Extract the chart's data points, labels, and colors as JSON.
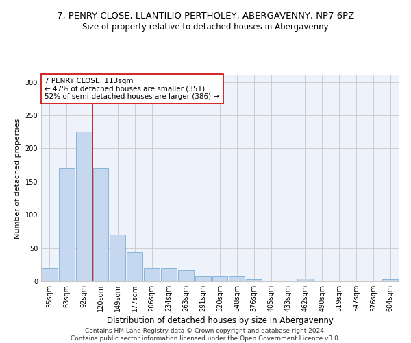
{
  "title1": "7, PENRY CLOSE, LLANTILIO PERTHOLEY, ABERGAVENNY, NP7 6PZ",
  "title2": "Size of property relative to detached houses in Abergavenny",
  "xlabel": "Distribution of detached houses by size in Abergavenny",
  "ylabel": "Number of detached properties",
  "categories": [
    "35sqm",
    "63sqm",
    "92sqm",
    "120sqm",
    "149sqm",
    "177sqm",
    "206sqm",
    "234sqm",
    "263sqm",
    "291sqm",
    "320sqm",
    "348sqm",
    "376sqm",
    "405sqm",
    "433sqm",
    "462sqm",
    "490sqm",
    "519sqm",
    "547sqm",
    "576sqm",
    "604sqm"
  ],
  "values": [
    20,
    170,
    225,
    170,
    70,
    43,
    20,
    20,
    17,
    7,
    7,
    7,
    3,
    0,
    0,
    4,
    0,
    0,
    0,
    0,
    3
  ],
  "bar_color": "#c5d8f0",
  "bar_edge_color": "#7bafd4",
  "vline_x_idx": 2.5,
  "vline_color": "#cc0000",
  "annotation_text": "7 PENRY CLOSE: 113sqm\n← 47% of detached houses are smaller (351)\n52% of semi-detached houses are larger (386) →",
  "annotation_box_color": "#ffffff",
  "annotation_box_edge_color": "#cc0000",
  "ylim": [
    0,
    310
  ],
  "yticks": [
    0,
    50,
    100,
    150,
    200,
    250,
    300
  ],
  "footer": "Contains HM Land Registry data © Crown copyright and database right 2024.\nContains public sector information licensed under the Open Government Licence v3.0.",
  "bg_color": "#eef2fb",
  "grid_color": "#c8c8c8",
  "title1_fontsize": 9.5,
  "title2_fontsize": 8.5,
  "xlabel_fontsize": 8.5,
  "ylabel_fontsize": 8,
  "tick_fontsize": 7,
  "annot_fontsize": 7.5,
  "footer_fontsize": 6.5
}
